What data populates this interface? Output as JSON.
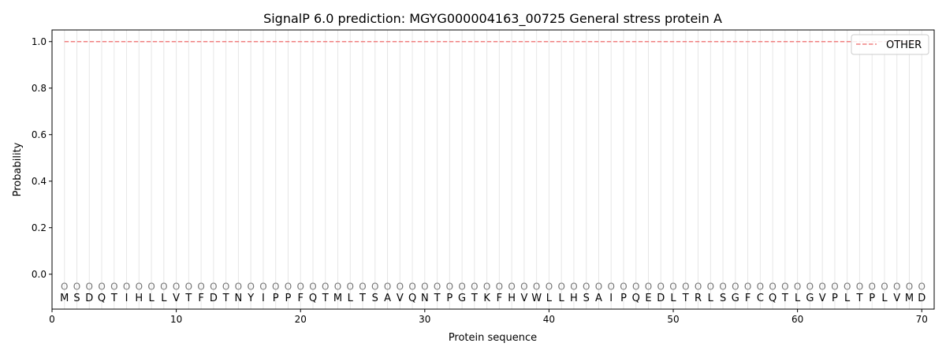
{
  "chart_data": {
    "type": "line",
    "title": "SignalP 6.0 prediction: MGYG000004163_00725 General stress protein A",
    "xlabel": "Protein sequence",
    "ylabel": "Probability",
    "xlim": [
      0,
      71
    ],
    "ylim": [
      -0.15,
      1.05
    ],
    "xticks": [
      0,
      10,
      20,
      30,
      40,
      50,
      60,
      70
    ],
    "yticks": [
      0.0,
      0.2,
      0.4,
      0.6,
      0.8,
      1.0
    ],
    "ytick_labels": [
      "0.0",
      "0.2",
      "0.4",
      "0.6",
      "0.8",
      "1.0"
    ],
    "grid": "vertical lines at each residue",
    "legend_position": "top-right",
    "sequence": [
      "M",
      "S",
      "D",
      "Q",
      "T",
      "I",
      "H",
      "L",
      "L",
      "V",
      "T",
      "F",
      "D",
      "T",
      "N",
      "Y",
      "I",
      "P",
      "P",
      "F",
      "Q",
      "T",
      "M",
      "L",
      "T",
      "S",
      "A",
      "V",
      "Q",
      "N",
      "T",
      "P",
      "G",
      "T",
      "K",
      "F",
      "H",
      "V",
      "W",
      "L",
      "L",
      "H",
      "S",
      "A",
      "I",
      "P",
      "Q",
      "E",
      "D",
      "L",
      "T",
      "R",
      "L",
      "S",
      "G",
      "F",
      "C",
      "Q",
      "T",
      "L",
      "G",
      "V",
      "P",
      "L",
      "T",
      "P",
      "L",
      "V",
      "M",
      "D"
    ],
    "predicted_labels": "OOOOOOOOOOOOOOOOOOOOOOOOOOOOOOOOOOOOOOOOOOOOOOOOOOOOOOOOOOOOOOOOOOOOOO",
    "series": [
      {
        "name": "OTHER",
        "color": "#f08080",
        "style": "dashed",
        "x_start": 1,
        "x_end": 70,
        "value": 1.0
      }
    ]
  }
}
